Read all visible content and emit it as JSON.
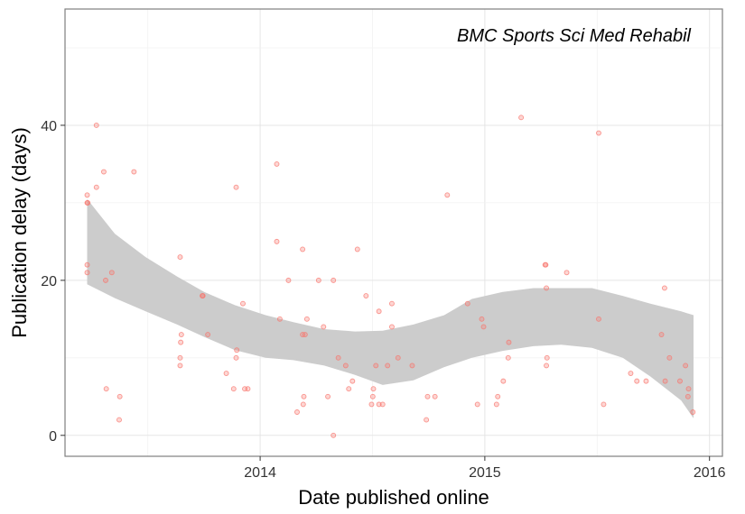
{
  "chart_data": {
    "type": "scatter",
    "title": "BMC Sports Sci Med Rehabil",
    "xlabel": "Date published online",
    "ylabel": "Publication delay (days)",
    "xlim": [
      "2013-02-18",
      "2016-01-22"
    ],
    "ylim": [
      -2.7,
      55
    ],
    "x_ticks": [
      {
        "date": "2014-01-01",
        "label": "2014"
      },
      {
        "date": "2015-01-01",
        "label": "2015"
      },
      {
        "date": "2016-01-01",
        "label": "2016"
      }
    ],
    "y_ticks": [
      0,
      20,
      40
    ],
    "grid": true,
    "point_color": "#f8766d",
    "band_color": "#cccccc",
    "points": [
      {
        "x": "2013-03-26",
        "y": 31
      },
      {
        "x": "2013-03-26",
        "y": 30
      },
      {
        "x": "2013-03-27",
        "y": 30
      },
      {
        "x": "2013-03-26",
        "y": 21
      },
      {
        "x": "2013-03-26",
        "y": 22
      },
      {
        "x": "2013-04-10",
        "y": 40
      },
      {
        "x": "2013-04-10",
        "y": 32
      },
      {
        "x": "2013-04-22",
        "y": 34
      },
      {
        "x": "2013-04-25",
        "y": 20
      },
      {
        "x": "2013-05-05",
        "y": 21
      },
      {
        "x": "2013-04-26",
        "y": 6
      },
      {
        "x": "2013-05-18",
        "y": 5
      },
      {
        "x": "2013-05-17",
        "y": 2
      },
      {
        "x": "2013-06-10",
        "y": 34
      },
      {
        "x": "2013-08-24",
        "y": 23
      },
      {
        "x": "2013-08-26",
        "y": 13
      },
      {
        "x": "2013-08-25",
        "y": 12
      },
      {
        "x": "2013-08-24",
        "y": 10
      },
      {
        "x": "2013-08-24",
        "y": 9
      },
      {
        "x": "2013-09-29",
        "y": 18
      },
      {
        "x": "2013-09-30",
        "y": 18
      },
      {
        "x": "2013-10-08",
        "y": 13
      },
      {
        "x": "2013-11-07",
        "y": 8
      },
      {
        "x": "2013-11-19",
        "y": 6
      },
      {
        "x": "2013-11-23",
        "y": 32
      },
      {
        "x": "2013-11-24",
        "y": 11
      },
      {
        "x": "2013-11-23",
        "y": 10
      },
      {
        "x": "2013-12-04",
        "y": 17
      },
      {
        "x": "2013-12-07",
        "y": 6
      },
      {
        "x": "2013-12-12",
        "y": 6
      },
      {
        "x": "2014-01-28",
        "y": 35
      },
      {
        "x": "2014-01-28",
        "y": 25
      },
      {
        "x": "2014-02-02",
        "y": 15
      },
      {
        "x": "2014-02-16",
        "y": 20
      },
      {
        "x": "2014-03-02",
        "y": 3
      },
      {
        "x": "2014-03-11",
        "y": 24
      },
      {
        "x": "2014-03-11",
        "y": 13
      },
      {
        "x": "2014-03-15",
        "y": 13
      },
      {
        "x": "2014-03-18",
        "y": 15
      },
      {
        "x": "2014-03-13",
        "y": 5
      },
      {
        "x": "2014-03-12",
        "y": 4
      },
      {
        "x": "2014-04-06",
        "y": 20
      },
      {
        "x": "2014-04-14",
        "y": 14
      },
      {
        "x": "2014-04-21",
        "y": 5
      },
      {
        "x": "2014-04-30",
        "y": 20
      },
      {
        "x": "2014-04-30",
        "y": 0
      },
      {
        "x": "2014-05-08",
        "y": 10
      },
      {
        "x": "2014-05-20",
        "y": 9
      },
      {
        "x": "2014-05-25",
        "y": 6
      },
      {
        "x": "2014-05-31",
        "y": 7
      },
      {
        "x": "2014-06-08",
        "y": 24
      },
      {
        "x": "2014-06-22",
        "y": 18
      },
      {
        "x": "2014-07-01",
        "y": 4
      },
      {
        "x": "2014-07-03",
        "y": 5
      },
      {
        "x": "2014-07-04",
        "y": 6
      },
      {
        "x": "2014-07-08",
        "y": 9
      },
      {
        "x": "2014-07-13",
        "y": 16
      },
      {
        "x": "2014-07-13",
        "y": 4
      },
      {
        "x": "2014-07-19",
        "y": 4
      },
      {
        "x": "2014-07-27",
        "y": 9
      },
      {
        "x": "2014-08-03",
        "y": 17
      },
      {
        "x": "2014-08-03",
        "y": 14
      },
      {
        "x": "2014-08-13",
        "y": 10
      },
      {
        "x": "2014-09-05",
        "y": 9
      },
      {
        "x": "2014-09-30",
        "y": 5
      },
      {
        "x": "2014-10-12",
        "y": 5
      },
      {
        "x": "2014-09-28",
        "y": 2
      },
      {
        "x": "2014-11-01",
        "y": 31
      },
      {
        "x": "2014-12-04",
        "y": 17
      },
      {
        "x": "2014-12-27",
        "y": 15
      },
      {
        "x": "2014-12-30",
        "y": 14
      },
      {
        "x": "2014-12-20",
        "y": 4
      },
      {
        "x": "2015-01-22",
        "y": 5
      },
      {
        "x": "2015-01-20",
        "y": 4
      },
      {
        "x": "2015-01-31",
        "y": 7
      },
      {
        "x": "2015-02-09",
        "y": 12
      },
      {
        "x": "2015-02-08",
        "y": 10
      },
      {
        "x": "2015-03-01",
        "y": 41
      },
      {
        "x": "2015-04-09",
        "y": 22
      },
      {
        "x": "2015-04-10",
        "y": 22
      },
      {
        "x": "2015-04-11",
        "y": 19
      },
      {
        "x": "2015-04-12",
        "y": 10
      },
      {
        "x": "2015-04-11",
        "y": 9
      },
      {
        "x": "2015-05-14",
        "y": 21
      },
      {
        "x": "2015-07-05",
        "y": 39
      },
      {
        "x": "2015-07-05",
        "y": 15
      },
      {
        "x": "2015-07-13",
        "y": 4
      },
      {
        "x": "2015-08-26",
        "y": 8
      },
      {
        "x": "2015-09-05",
        "y": 7
      },
      {
        "x": "2015-09-20",
        "y": 7
      },
      {
        "x": "2015-10-15",
        "y": 13
      },
      {
        "x": "2015-10-20",
        "y": 19
      },
      {
        "x": "2015-10-21",
        "y": 7
      },
      {
        "x": "2015-10-28",
        "y": 10
      },
      {
        "x": "2015-11-14",
        "y": 7
      },
      {
        "x": "2015-11-23",
        "y": 9
      },
      {
        "x": "2015-11-28",
        "y": 6
      },
      {
        "x": "2015-11-27",
        "y": 5
      },
      {
        "x": "2015-12-05",
        "y": 3
      }
    ],
    "smooth_band": [
      {
        "x": "2013-03-26",
        "lower": 19.5,
        "upper": 30.5
      },
      {
        "x": "2013-05-10",
        "lower": 17.7,
        "upper": 26.0
      },
      {
        "x": "2013-06-29",
        "lower": 16.0,
        "upper": 23.0
      },
      {
        "x": "2013-08-19",
        "lower": 14.3,
        "upper": 20.5
      },
      {
        "x": "2013-10-02",
        "lower": 12.7,
        "upper": 18.5
      },
      {
        "x": "2013-11-21",
        "lower": 11.0,
        "upper": 16.8
      },
      {
        "x": "2014-01-10",
        "lower": 10.0,
        "upper": 15.5
      },
      {
        "x": "2014-02-24",
        "lower": 9.7,
        "upper": 14.6
      },
      {
        "x": "2014-04-15",
        "lower": 9.0,
        "upper": 13.7
      },
      {
        "x": "2014-06-04",
        "lower": 7.8,
        "upper": 13.4
      },
      {
        "x": "2014-07-19",
        "lower": 6.5,
        "upper": 13.5
      },
      {
        "x": "2014-09-07",
        "lower": 7.1,
        "upper": 14.3
      },
      {
        "x": "2014-10-27",
        "lower": 8.8,
        "upper": 15.5
      },
      {
        "x": "2014-12-11",
        "lower": 10.0,
        "upper": 17.6
      },
      {
        "x": "2015-01-30",
        "lower": 10.9,
        "upper": 18.5
      },
      {
        "x": "2015-03-21",
        "lower": 11.5,
        "upper": 19.0
      },
      {
        "x": "2015-05-05",
        "lower": 11.7,
        "upper": 19.0
      },
      {
        "x": "2015-06-24",
        "lower": 11.3,
        "upper": 19.0
      },
      {
        "x": "2015-08-13",
        "lower": 10.0,
        "upper": 18.0
      },
      {
        "x": "2015-09-27",
        "lower": 7.6,
        "upper": 17.0
      },
      {
        "x": "2015-11-16",
        "lower": 4.5,
        "upper": 16.0
      },
      {
        "x": "2015-12-06",
        "lower": 2.2,
        "upper": 15.5
      }
    ]
  }
}
